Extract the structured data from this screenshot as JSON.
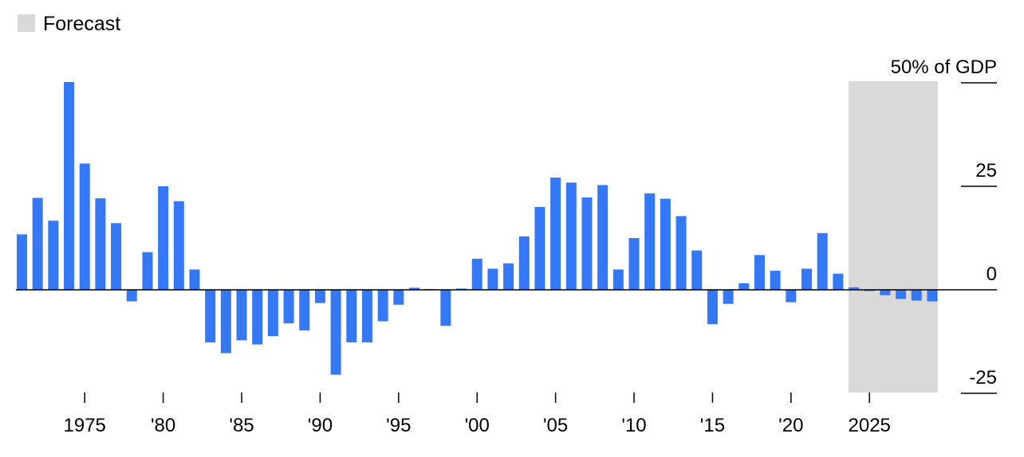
{
  "chart_data": {
    "type": "bar",
    "title": "",
    "xlabel": "",
    "ylabel": "",
    "y_unit_label": "50% of GDP",
    "ylim": [
      -25,
      50
    ],
    "y_ticks": [
      50,
      25,
      0,
      -25
    ],
    "y_tick_labels": [
      "50% of GDP",
      "25",
      "0",
      "-25"
    ],
    "x_tick_years": [
      1975,
      1980,
      1985,
      1990,
      1995,
      2000,
      2005,
      2010,
      2015,
      2020,
      2025
    ],
    "x_tick_labels": [
      "1975",
      "'80",
      "'85",
      "'90",
      "'95",
      "'00",
      "'05",
      "'10",
      "'15",
      "'20",
      "2025"
    ],
    "legend": [
      {
        "label": "Forecast",
        "color": "#d9d9d9"
      }
    ],
    "forecast_range": [
      2024,
      2029
    ],
    "grid": false,
    "colors": {
      "bar": "#3478f6",
      "forecast_band": "#d9d9d9",
      "axis": "#000000"
    },
    "years": [
      1971,
      1972,
      1973,
      1974,
      1975,
      1976,
      1977,
      1978,
      1979,
      1980,
      1981,
      1982,
      1983,
      1984,
      1985,
      1986,
      1987,
      1988,
      1989,
      1990,
      1991,
      1992,
      1993,
      1994,
      1995,
      1996,
      1997,
      1998,
      1999,
      2000,
      2001,
      2002,
      2003,
      2004,
      2005,
      2006,
      2007,
      2008,
      2009,
      2010,
      2011,
      2012,
      2013,
      2014,
      2015,
      2016,
      2017,
      2018,
      2019,
      2020,
      2021,
      2022,
      2023,
      2024,
      2025,
      2026,
      2027,
      2028,
      2029
    ],
    "values": [
      13.4,
      22.2,
      16.7,
      50.2,
      30.5,
      22.1,
      16.1,
      -2.8,
      9.1,
      25.0,
      21.4,
      4.9,
      -12.7,
      -15.3,
      -12.2,
      -13.2,
      -11.2,
      -8.1,
      -9.8,
      -3.2,
      -20.5,
      -12.7,
      -12.7,
      -7.6,
      -3.6,
      0.5,
      0.2,
      -8.7,
      0.3,
      7.5,
      5.1,
      6.4,
      12.9,
      20.0,
      27.1,
      25.9,
      22.3,
      25.3,
      4.9,
      12.5,
      23.3,
      22.0,
      17.8,
      9.5,
      -8.3,
      -3.4,
      1.6,
      8.4,
      4.6,
      -3.0,
      5.1,
      13.7,
      3.9,
      0.6,
      -0.3,
      -1.3,
      -2.2,
      -2.6,
      -2.8
    ]
  }
}
